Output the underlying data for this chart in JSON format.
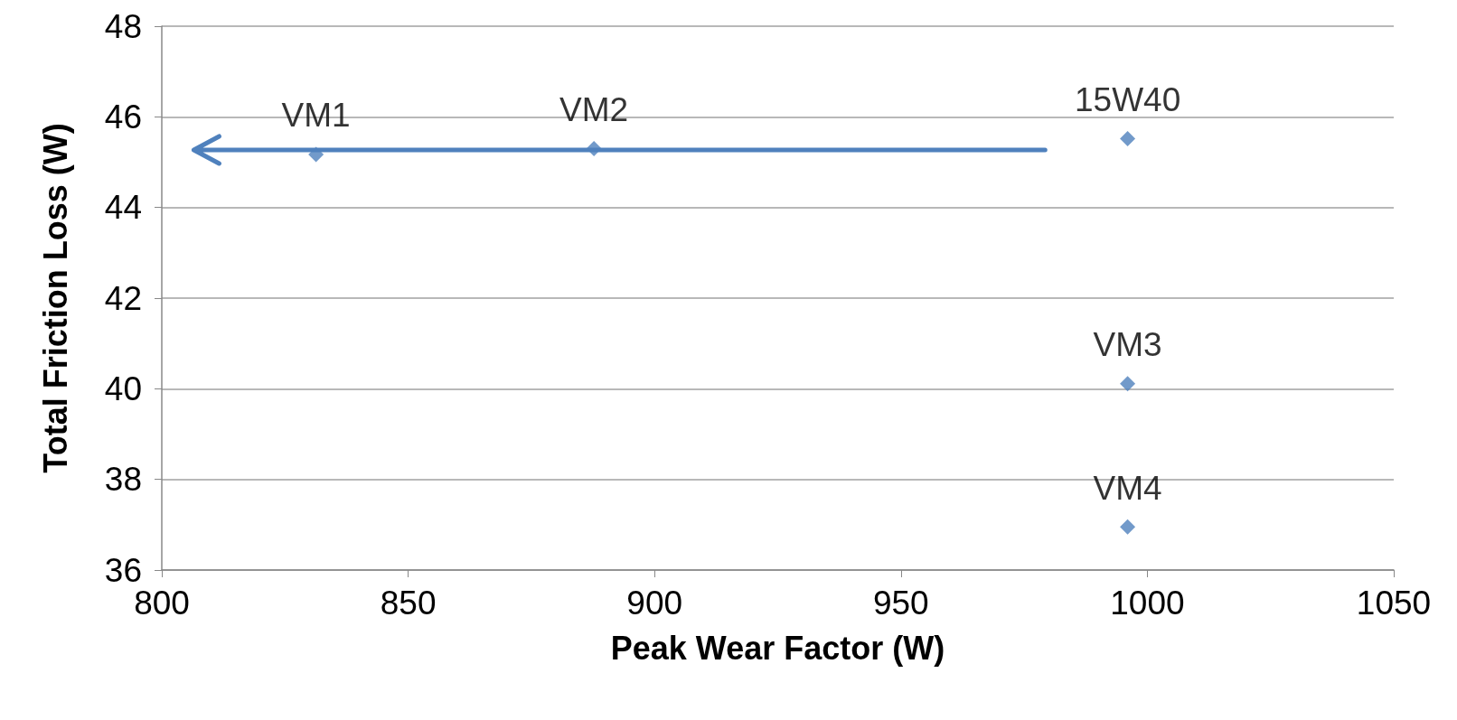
{
  "chart_data": {
    "type": "scatter",
    "xlabel": "Peak Wear Factor (W)",
    "ylabel": "Total Friction Loss (W)",
    "x": [
      831.3,
      887.7,
      996,
      996,
      996
    ],
    "values": [
      45.17,
      45.3,
      45.52,
      40.11,
      36.95
    ],
    "value_labels": [
      "VM1",
      "VM2",
      "15W40",
      "VM3",
      "VM4"
    ],
    "color": "#4f81bd",
    "marker": "diamond",
    "grid": "y",
    "xlim": [
      800,
      1050
    ],
    "xticks": [
      800,
      850,
      900,
      950,
      1000,
      1050
    ],
    "ylim": [
      36,
      48
    ],
    "yticks": [
      36,
      38,
      40,
      42,
      44,
      46,
      48
    ]
  }
}
